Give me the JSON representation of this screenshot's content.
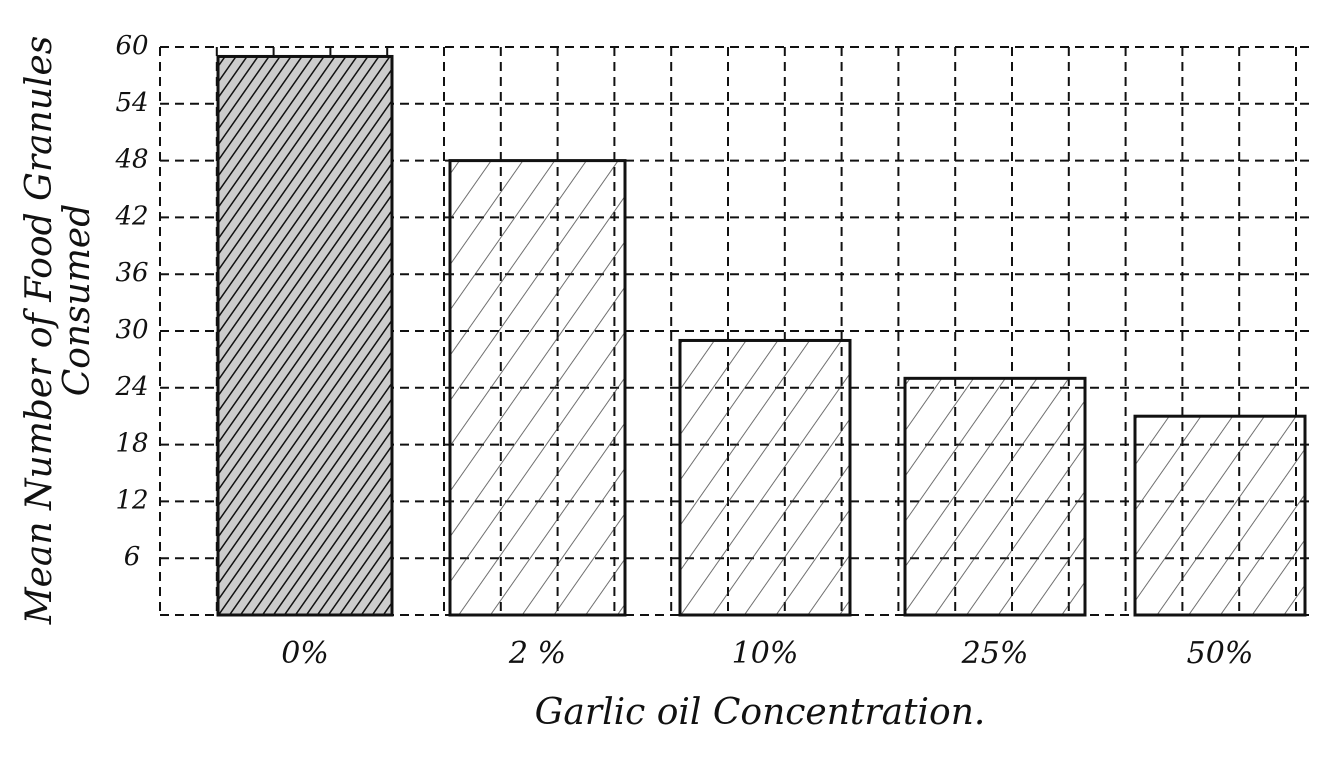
{
  "chart_data": {
    "type": "bar",
    "x_label": "Garlic oil Concentration.",
    "y_label": [
      "Mean Number of Food Granules",
      "Consumed"
    ],
    "categories": [
      "0%",
      "2 %",
      "10%",
      "25%",
      "50%"
    ],
    "values": [
      59,
      48,
      29,
      25,
      21
    ],
    "color": "#111111",
    "ylim": [
      0,
      60
    ],
    "yticks": [
      6,
      12,
      18,
      24,
      30,
      36,
      42,
      48,
      54,
      60
    ],
    "grid": true
  }
}
